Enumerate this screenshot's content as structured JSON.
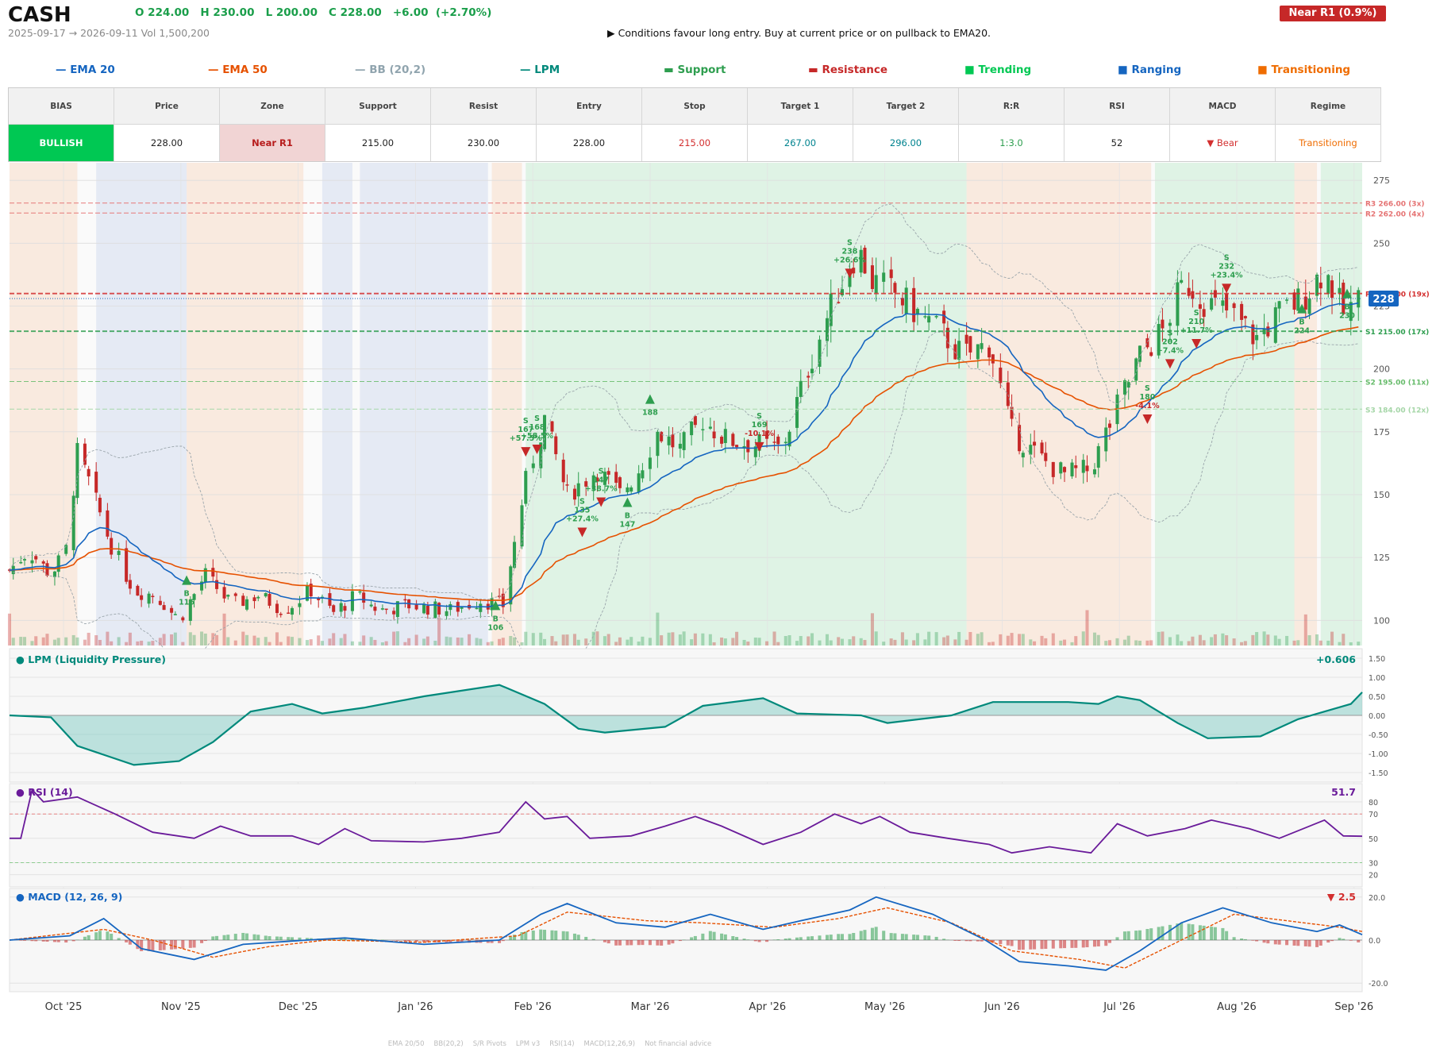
{
  "header": {
    "ticker": "CASH",
    "ohlc": "O 224.00   H 230.00   L 200.00   C 228.00   +6.00  (+2.70%)",
    "range": "2025-09-17 → 2026-09-11   Vol 1,500,200",
    "badge": "Near R1  (0.9%)",
    "advice": "▶  Conditions favour long entry. Buy at current price or on pullback to EMA20."
  },
  "legend": [
    {
      "label": "— EMA 20",
      "color": "#1565c0"
    },
    {
      "label": "— EMA 50",
      "color": "#e65100"
    },
    {
      "label": "— BB (20,2)",
      "color": "#90a4ae"
    },
    {
      "label": "— LPM",
      "color": "#00897b"
    },
    {
      "label": "▬  Support",
      "color": "#2e9e4f"
    },
    {
      "label": "▬  Resistance",
      "color": "#c62828"
    },
    {
      "label": "■  Trending",
      "color": "#00c853"
    },
    {
      "label": "■  Ranging",
      "color": "#1565c0"
    },
    {
      "label": "■  Transitioning",
      "color": "#ef6c00"
    }
  ],
  "stats": {
    "headers": [
      "BIAS",
      "Price",
      "Zone",
      "Support",
      "Resist",
      "Entry",
      "Stop",
      "Target 1",
      "Target 2",
      "R:R",
      "RSI",
      "MACD",
      "Regime"
    ],
    "values": [
      "BULLISH",
      "228.00",
      "Near R1",
      "215.00",
      "230.00",
      "228.00",
      "215.00",
      "267.00",
      "296.00",
      "1:3.0",
      "52",
      "▼ Bear",
      "Transitioning"
    ],
    "colors": [
      "#ffffff",
      "#222222",
      "#b71c1c",
      "#222222",
      "#222222",
      "#222222",
      "#d32f2f",
      "#00838f",
      "#00838f",
      "#2e9e4f",
      "#222222",
      "#d32f2f",
      "#ef6c00"
    ],
    "backgrounds": [
      "#00c853",
      "#ffffff",
      "#f1d4d4",
      "#ffffff",
      "#ffffff",
      "#ffffff",
      "#ffffff",
      "#ffffff",
      "#ffffff",
      "#ffffff",
      "#ffffff",
      "#ffffff",
      "#ffffff"
    ]
  },
  "footer": [
    "EMA 20/50",
    "BB(20,2)",
    "S/R Pivots",
    "LPM v3",
    "RSI(14)",
    "MACD(12,26,9)",
    "Not financial advice"
  ],
  "colors": {
    "up": "#2e9e4f",
    "down": "#c62828",
    "ema20": "#1565c0",
    "ema50": "#e65100",
    "lpm": "#00897b",
    "rsi": "#6a1b9a",
    "macd": "#1565c0",
    "signal": "#e65100"
  },
  "chart_data": {
    "type": "candlestick",
    "x_ticks": [
      "Oct '25",
      "Nov '25",
      "Dec '25",
      "Jan '26",
      "Feb '26",
      "Mar '26",
      "Apr '26",
      "May '26",
      "Jun '26",
      "Jul '26",
      "Aug '26",
      "Sep '26"
    ],
    "price_ticks": [
      100,
      125,
      150,
      175,
      200,
      225,
      250,
      275
    ],
    "ylim": [
      90,
      282
    ],
    "last_price": 228,
    "levels": [
      {
        "label": "R3 266.00 (3x)",
        "value": 266,
        "color": "#e57373"
      },
      {
        "label": "R2 262.00 (4x)",
        "value": 262,
        "color": "#e57373"
      },
      {
        "label": "R1 230.00 (19x)",
        "value": 230,
        "color": "#d32f2f"
      },
      {
        "label": "S1 215.00 (17x)",
        "value": 215,
        "color": "#2e9e4f"
      },
      {
        "label": "S2 195.00 (11x)",
        "value": 195,
        "color": "#66bb6a"
      },
      {
        "label": "S3 184.00 (12x)",
        "value": 184,
        "color": "#a5d6a7"
      }
    ],
    "regimes": [
      {
        "from": "2025-09-17",
        "to": "2025-10-05",
        "type": "Transitioning"
      },
      {
        "from": "2025-10-10",
        "to": "2025-11-03",
        "type": "Ranging"
      },
      {
        "from": "2025-11-03",
        "to": "2025-12-04",
        "type": "Transitioning"
      },
      {
        "from": "2025-12-09",
        "to": "2025-12-17",
        "type": "Ranging"
      },
      {
        "from": "2025-12-19",
        "to": "2026-01-22",
        "type": "Ranging"
      },
      {
        "from": "2026-01-23",
        "to": "2026-01-31",
        "type": "Transitioning"
      },
      {
        "from": "2026-02-01",
        "to": "2026-05-29",
        "type": "Trending"
      },
      {
        "from": "2026-05-29",
        "to": "2026-07-17",
        "type": "Transitioning"
      },
      {
        "from": "2026-07-18",
        "to": "2026-08-24",
        "type": "Trending"
      },
      {
        "from": "2026-08-24",
        "to": "2026-08-30",
        "type": "Transitioning"
      },
      {
        "from": "2026-08-31",
        "to": "2026-09-11",
        "type": "Trending"
      }
    ],
    "path": [
      [
        "2025-09-17",
        120
      ],
      [
        "2025-09-22",
        128
      ],
      [
        "2025-09-28",
        118
      ],
      [
        "2025-10-02",
        128
      ],
      [
        "2025-10-05",
        166
      ],
      [
        "2025-10-08",
        155
      ],
      [
        "2025-10-14",
        130
      ],
      [
        "2025-10-20",
        112
      ],
      [
        "2025-10-26",
        110
      ],
      [
        "2025-11-01",
        100
      ],
      [
        "2025-11-08",
        118
      ],
      [
        "2025-11-15",
        106
      ],
      [
        "2025-11-22",
        110
      ],
      [
        "2025-11-29",
        104
      ],
      [
        "2025-12-06",
        112
      ],
      [
        "2025-12-12",
        103
      ],
      [
        "2025-12-18",
        110
      ],
      [
        "2025-12-24",
        104
      ],
      [
        "2026-01-01",
        106
      ],
      [
        "2026-01-12",
        104
      ],
      [
        "2026-01-20",
        108
      ],
      [
        "2026-01-26",
        106
      ],
      [
        "2026-02-01",
        155
      ],
      [
        "2026-02-06",
        180
      ],
      [
        "2026-02-12",
        150
      ],
      [
        "2026-02-20",
        160
      ],
      [
        "2026-02-26",
        150
      ],
      [
        "2026-03-03",
        160
      ],
      [
        "2026-03-08",
        175
      ],
      [
        "2026-03-14",
        168
      ],
      [
        "2026-03-20",
        180
      ],
      [
        "2026-03-26",
        172
      ],
      [
        "2026-04-03",
        170
      ],
      [
        "2026-04-10",
        168
      ],
      [
        "2026-04-18",
        205
      ],
      [
        "2026-04-24",
        228
      ],
      [
        "2026-04-30",
        248
      ],
      [
        "2026-05-04",
        235
      ],
      [
        "2026-05-10",
        230
      ],
      [
        "2026-05-16",
        222
      ],
      [
        "2026-05-22",
        215
      ],
      [
        "2026-05-28",
        205
      ],
      [
        "2026-06-04",
        210
      ],
      [
        "2026-06-10",
        175
      ],
      [
        "2026-06-17",
        165
      ],
      [
        "2026-06-24",
        158
      ],
      [
        "2026-07-01",
        160
      ],
      [
        "2026-07-08",
        185
      ],
      [
        "2026-07-14",
        205
      ],
      [
        "2026-07-20",
        215
      ],
      [
        "2026-07-26",
        235
      ],
      [
        "2026-08-01",
        226
      ],
      [
        "2026-08-07",
        222
      ],
      [
        "2026-08-14",
        212
      ],
      [
        "2026-08-20",
        222
      ],
      [
        "2026-08-26",
        228
      ],
      [
        "2026-09-01",
        240
      ],
      [
        "2026-09-06",
        222
      ],
      [
        "2026-09-11",
        228
      ]
    ],
    "markers": [
      {
        "date": "2025-11-03",
        "side": "B",
        "text": [
          "B",
          "116"
        ],
        "y": 116
      },
      {
        "date": "2026-01-24",
        "side": "B",
        "text": [
          "B",
          "106"
        ],
        "y": 106
      },
      {
        "date": "2026-02-01",
        "side": "S",
        "text": [
          "S",
          "167",
          "+57.5%"
        ],
        "y": 167
      },
      {
        "date": "2026-02-04",
        "side": "S",
        "text": [
          "S",
          "168",
          "+58.5%"
        ],
        "y": 168
      },
      {
        "date": "2026-02-16",
        "side": "S",
        "text": [
          "S",
          "135",
          "+27.4%"
        ],
        "y": 135
      },
      {
        "date": "2026-02-21",
        "side": "S",
        "text": [
          "S",
          "147",
          "+38.7%"
        ],
        "y": 147
      },
      {
        "date": "2026-02-28",
        "side": "B",
        "text": [
          "B",
          "147"
        ],
        "y": 147
      },
      {
        "date": "2026-03-06",
        "side": "B",
        "text": [
          "188"
        ],
        "y": 188
      },
      {
        "date": "2026-04-04",
        "side": "S",
        "text": [
          "S",
          "169",
          "-10.1%"
        ],
        "y": 169
      },
      {
        "date": "2026-04-28",
        "side": "S",
        "text": [
          "S",
          "238",
          "+26.6%"
        ],
        "y": 238
      },
      {
        "date": "2026-07-16",
        "side": "S",
        "text": [
          "S",
          "180",
          "-4.1%"
        ],
        "y": 180
      },
      {
        "date": "2026-07-22",
        "side": "S",
        "text": [
          "S",
          "202",
          "+7.4%"
        ],
        "y": 202
      },
      {
        "date": "2026-07-29",
        "side": "S",
        "text": [
          "S",
          "210",
          "+11.7%"
        ],
        "y": 210
      },
      {
        "date": "2026-08-06",
        "side": "S",
        "text": [
          "S",
          "232",
          "+23.4%"
        ],
        "y": 232
      },
      {
        "date": "2026-08-26",
        "side": "B",
        "text": [
          "B",
          "224"
        ],
        "y": 224
      },
      {
        "date": "2026-09-07",
        "side": "B",
        "text": [
          "B",
          "230"
        ],
        "y": 230
      }
    ],
    "lpm": {
      "title": "● LPM (Liquidity Pressure)",
      "last": "+0.606",
      "ticks": [
        1.5,
        1.0,
        0.5,
        0.0,
        -0.5,
        -1.0,
        -1.5
      ],
      "ylim": [
        -1.75,
        1.75
      ],
      "points": [
        [
          "2025-09-17",
          0.0
        ],
        [
          "2025-09-28",
          -0.05
        ],
        [
          "2025-10-05",
          -0.8
        ],
        [
          "2025-10-20",
          -1.3
        ],
        [
          "2025-11-01",
          -1.2
        ],
        [
          "2025-11-10",
          -0.7
        ],
        [
          "2025-11-20",
          0.1
        ],
        [
          "2025-12-01",
          0.3
        ],
        [
          "2025-12-09",
          0.05
        ],
        [
          "2025-12-20",
          0.2
        ],
        [
          "2026-01-05",
          0.5
        ],
        [
          "2026-01-25",
          0.8
        ],
        [
          "2026-02-06",
          0.3
        ],
        [
          "2026-02-15",
          -0.35
        ],
        [
          "2026-02-22",
          -0.45
        ],
        [
          "2026-03-10",
          -0.3
        ],
        [
          "2026-03-20",
          0.25
        ],
        [
          "2026-04-05",
          0.45
        ],
        [
          "2026-04-14",
          0.05
        ],
        [
          "2026-05-01",
          0.0
        ],
        [
          "2026-05-08",
          -0.2
        ],
        [
          "2026-05-25",
          0.0
        ],
        [
          "2026-06-05",
          0.35
        ],
        [
          "2026-06-25",
          0.35
        ],
        [
          "2026-07-03",
          0.3
        ],
        [
          "2026-07-08",
          0.5
        ],
        [
          "2026-07-14",
          0.4
        ],
        [
          "2026-07-24",
          -0.2
        ],
        [
          "2026-08-01",
          -0.6
        ],
        [
          "2026-08-15",
          -0.55
        ],
        [
          "2026-08-25",
          -0.1
        ],
        [
          "2026-09-01",
          0.1
        ],
        [
          "2026-09-08",
          0.3
        ],
        [
          "2026-09-11",
          0.606
        ]
      ]
    },
    "rsi": {
      "title": "● RSI (14)",
      "last": "51.7",
      "ticks": [
        80,
        70,
        50,
        30,
        20
      ],
      "ylim": [
        10,
        95
      ],
      "points": [
        [
          "2025-09-17",
          50
        ],
        [
          "2025-09-20",
          50
        ],
        [
          "2025-09-23",
          90
        ],
        [
          "2025-09-26",
          80
        ],
        [
          "2025-10-05",
          84
        ],
        [
          "2025-10-15",
          70
        ],
        [
          "2025-10-25",
          55
        ],
        [
          "2025-11-05",
          50
        ],
        [
          "2025-11-12",
          60
        ],
        [
          "2025-11-20",
          52
        ],
        [
          "2025-12-01",
          52
        ],
        [
          "2025-12-08",
          45
        ],
        [
          "2025-12-15",
          58
        ],
        [
          "2025-12-22",
          48
        ],
        [
          "2026-01-05",
          47
        ],
        [
          "2026-01-15",
          50
        ],
        [
          "2026-01-25",
          55
        ],
        [
          "2026-02-01",
          80
        ],
        [
          "2026-02-06",
          66
        ],
        [
          "2026-02-12",
          68
        ],
        [
          "2026-02-18",
          50
        ],
        [
          "2026-03-01",
          52
        ],
        [
          "2026-03-10",
          60
        ],
        [
          "2026-03-18",
          68
        ],
        [
          "2026-03-25",
          60
        ],
        [
          "2026-04-05",
          45
        ],
        [
          "2026-04-15",
          55
        ],
        [
          "2026-04-24",
          70
        ],
        [
          "2026-05-01",
          62
        ],
        [
          "2026-05-06",
          68
        ],
        [
          "2026-05-14",
          55
        ],
        [
          "2026-05-24",
          50
        ],
        [
          "2026-06-04",
          45
        ],
        [
          "2026-06-10",
          38
        ],
        [
          "2026-06-20",
          43
        ],
        [
          "2026-07-01",
          38
        ],
        [
          "2026-07-08",
          62
        ],
        [
          "2026-07-16",
          52
        ],
        [
          "2026-07-26",
          58
        ],
        [
          "2026-08-02",
          65
        ],
        [
          "2026-08-12",
          58
        ],
        [
          "2026-08-20",
          50
        ],
        [
          "2026-09-01",
          65
        ],
        [
          "2026-09-06",
          52
        ],
        [
          "2026-09-11",
          51.7
        ]
      ]
    },
    "macd": {
      "title": "● MACD (12, 26, 9)",
      "last": "▼ 2.5",
      "ticks": [
        20.0,
        0.0,
        -20.0
      ],
      "ylim": [
        -24,
        24
      ],
      "macd_points": [
        [
          "2025-09-17",
          0
        ],
        [
          "2025-10-03",
          2
        ],
        [
          "2025-10-12",
          10
        ],
        [
          "2025-10-22",
          -4
        ],
        [
          "2025-11-05",
          -9
        ],
        [
          "2025-11-18",
          -2
        ],
        [
          "2025-12-05",
          0
        ],
        [
          "2025-12-15",
          1
        ],
        [
          "2026-01-05",
          -2
        ],
        [
          "2026-01-25",
          0
        ],
        [
          "2026-02-05",
          12
        ],
        [
          "2026-02-12",
          17
        ],
        [
          "2026-02-25",
          8
        ],
        [
          "2026-03-10",
          6
        ],
        [
          "2026-03-22",
          12
        ],
        [
          "2026-04-05",
          5
        ],
        [
          "2026-04-15",
          9
        ],
        [
          "2026-04-28",
          14
        ],
        [
          "2026-05-05",
          20
        ],
        [
          "2026-05-20",
          12
        ],
        [
          "2026-06-03",
          0
        ],
        [
          "2026-06-12",
          -10
        ],
        [
          "2026-06-25",
          -12
        ],
        [
          "2026-07-05",
          -14
        ],
        [
          "2026-07-14",
          -5
        ],
        [
          "2026-07-25",
          8
        ],
        [
          "2026-08-05",
          15
        ],
        [
          "2026-08-18",
          8
        ],
        [
          "2026-08-30",
          4
        ],
        [
          "2026-09-05",
          7
        ],
        [
          "2026-09-11",
          2.5
        ]
      ],
      "signal_points": [
        [
          "2025-09-17",
          0
        ],
        [
          "2025-10-12",
          5
        ],
        [
          "2025-10-25",
          0
        ],
        [
          "2025-11-10",
          -8
        ],
        [
          "2025-11-25",
          -3
        ],
        [
          "2025-12-10",
          0
        ],
        [
          "2026-01-05",
          -1
        ],
        [
          "2026-01-30",
          2
        ],
        [
          "2026-02-12",
          13
        ],
        [
          "2026-03-05",
          9
        ],
        [
          "2026-03-20",
          8
        ],
        [
          "2026-04-08",
          6
        ],
        [
          "2026-04-25",
          10
        ],
        [
          "2026-05-08",
          15
        ],
        [
          "2026-05-25",
          8
        ],
        [
          "2026-06-10",
          -5
        ],
        [
          "2026-06-28",
          -9
        ],
        [
          "2026-07-10",
          -13
        ],
        [
          "2026-07-25",
          0
        ],
        [
          "2026-08-08",
          12
        ],
        [
          "2026-08-22",
          9
        ],
        [
          "2026-09-05",
          6
        ],
        [
          "2026-09-11",
          4
        ]
      ]
    }
  }
}
